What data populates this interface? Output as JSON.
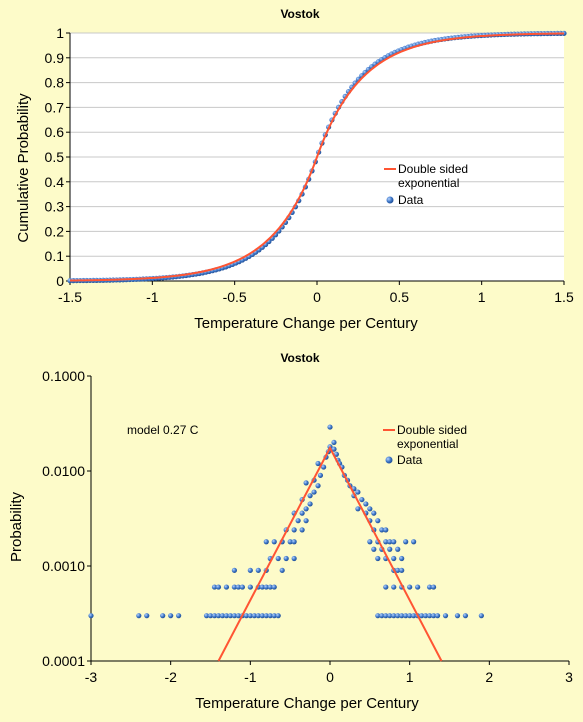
{
  "colors": {
    "background": "#fdfbc9",
    "plot_area": "#ffffff",
    "gridline": "#c8c8c8",
    "fit_line": "#ff5533",
    "data_marker": "#2a5fb0",
    "data_marker_highlight": "#9fc4f5"
  },
  "chart_data": [
    {
      "type": "scatter",
      "title": "Vostok",
      "xlabel": "Temperature Change per Century",
      "ylabel": "Cumulative Probability",
      "xlim": [
        -1.5,
        1.5
      ],
      "ylim": [
        0,
        1
      ],
      "x_ticks": [
        "-1.5",
        "-1",
        "-0.5",
        "0",
        "0.5",
        "1",
        "1.5"
      ],
      "y_ticks": [
        "0",
        "0.1",
        "0.2",
        "0.3",
        "0.4",
        "0.5",
        "0.6",
        "0.7",
        "0.8",
        "0.9",
        "1"
      ],
      "grid": "horizontal",
      "legend_position": "right-middle",
      "legend": [
        "Double sided exponential",
        "Data"
      ],
      "series": [
        {
          "name": "Double sided exponential",
          "kind": "line",
          "model": "laplace_cdf",
          "scale": 0.27
        },
        {
          "name": "Data",
          "kind": "markers",
          "x_range": [
            -1.5,
            1.5
          ],
          "n_points": 150,
          "model": "laplace_cdf",
          "scale": 0.255
        }
      ]
    },
    {
      "type": "scatter",
      "title": "Vostok",
      "xlabel": "Temperature Change per Century",
      "ylabel": "Probability",
      "xlim": [
        -3,
        3
      ],
      "ylim": [
        0.0001,
        0.1
      ],
      "y_scale": "log",
      "x_ticks": [
        "-3",
        "-2",
        "-1",
        "0",
        "1",
        "2",
        "3"
      ],
      "y_ticks": [
        "0.0001",
        "0.0010",
        "0.0100",
        "0.1000"
      ],
      "grid": "none",
      "legend_position": "top-right",
      "legend": [
        "Double sided exponential",
        "Data"
      ],
      "annotation": "model 0.27 C",
      "series": [
        {
          "name": "Double sided exponential",
          "kind": "line",
          "x": [
            -1.4,
            0,
            1.4
          ],
          "y": [
            0.0001,
            0.0175,
            0.0001
          ]
        },
        {
          "name": "Data",
          "kind": "markers",
          "points": [
            [
              -3.0,
              0.0003
            ],
            [
              -2.4,
              0.0003
            ],
            [
              -2.3,
              0.0003
            ],
            [
              -2.1,
              0.0003
            ],
            [
              -2.0,
              0.0003
            ],
            [
              -1.9,
              0.0003
            ],
            [
              -1.55,
              0.0003
            ],
            [
              -1.5,
              0.0003
            ],
            [
              -1.45,
              0.0003
            ],
            [
              -1.4,
              0.0003
            ],
            [
              -1.35,
              0.0003
            ],
            [
              -1.3,
              0.0003
            ],
            [
              -1.25,
              0.0003
            ],
            [
              -1.2,
              0.0003
            ],
            [
              -1.15,
              0.0003
            ],
            [
              -1.1,
              0.0003
            ],
            [
              -1.05,
              0.0003
            ],
            [
              -1.0,
              0.0003
            ],
            [
              -0.95,
              0.0003
            ],
            [
              -0.9,
              0.0003
            ],
            [
              -0.85,
              0.0003
            ],
            [
              -0.8,
              0.0003
            ],
            [
              -0.75,
              0.0003
            ],
            [
              -0.7,
              0.0003
            ],
            [
              -0.65,
              0.0003
            ],
            [
              -1.45,
              0.0006
            ],
            [
              -1.4,
              0.0006
            ],
            [
              -1.3,
              0.0006
            ],
            [
              -1.2,
              0.0006
            ],
            [
              -1.15,
              0.0006
            ],
            [
              -1.1,
              0.0006
            ],
            [
              -1.0,
              0.0006
            ],
            [
              -0.9,
              0.0006
            ],
            [
              -0.85,
              0.0006
            ],
            [
              -0.8,
              0.0006
            ],
            [
              -0.75,
              0.0006
            ],
            [
              -0.7,
              0.0006
            ],
            [
              -1.2,
              0.0009
            ],
            [
              -1.0,
              0.0009
            ],
            [
              -0.9,
              0.0009
            ],
            [
              -0.8,
              0.0009
            ],
            [
              -0.6,
              0.0009
            ],
            [
              -0.75,
              0.0012
            ],
            [
              -0.65,
              0.0012
            ],
            [
              -0.55,
              0.0012
            ],
            [
              -0.45,
              0.0012
            ],
            [
              -0.8,
              0.0018
            ],
            [
              -0.7,
              0.0018
            ],
            [
              -0.6,
              0.0018
            ],
            [
              -0.5,
              0.0018
            ],
            [
              -0.45,
              0.0018
            ],
            [
              -0.55,
              0.0024
            ],
            [
              -0.45,
              0.0024
            ],
            [
              -0.35,
              0.0024
            ],
            [
              -0.4,
              0.003
            ],
            [
              -0.3,
              0.003
            ],
            [
              -0.45,
              0.0036
            ],
            [
              -0.35,
              0.0036
            ],
            [
              -0.3,
              0.004
            ],
            [
              -0.25,
              0.0045
            ],
            [
              -0.35,
              0.005
            ],
            [
              -0.25,
              0.0055
            ],
            [
              -0.2,
              0.006
            ],
            [
              -0.15,
              0.007
            ],
            [
              -0.3,
              0.0075
            ],
            [
              -0.2,
              0.008
            ],
            [
              -0.12,
              0.009
            ],
            [
              -0.08,
              0.011
            ],
            [
              -0.15,
              0.012
            ],
            [
              -0.05,
              0.014
            ],
            [
              -0.02,
              0.016
            ],
            [
              0.0,
              0.018
            ],
            [
              0.0,
              0.029
            ],
            [
              0.05,
              0.02
            ],
            [
              0.05,
              0.017
            ],
            [
              0.08,
              0.015
            ],
            [
              0.1,
              0.013
            ],
            [
              0.12,
              0.012
            ],
            [
              0.15,
              0.011
            ],
            [
              0.18,
              0.009
            ],
            [
              0.22,
              0.008
            ],
            [
              0.25,
              0.007
            ],
            [
              0.3,
              0.0065
            ],
            [
              0.35,
              0.006
            ],
            [
              0.3,
              0.0055
            ],
            [
              0.4,
              0.005
            ],
            [
              0.45,
              0.0045
            ],
            [
              0.35,
              0.004
            ],
            [
              0.5,
              0.004
            ],
            [
              0.45,
              0.0036
            ],
            [
              0.55,
              0.0036
            ],
            [
              0.5,
              0.003
            ],
            [
              0.6,
              0.003
            ],
            [
              0.55,
              0.0024
            ],
            [
              0.65,
              0.0024
            ],
            [
              0.7,
              0.0024
            ],
            [
              0.5,
              0.0018
            ],
            [
              0.6,
              0.0018
            ],
            [
              0.7,
              0.0018
            ],
            [
              0.75,
              0.0018
            ],
            [
              0.8,
              0.0018
            ],
            [
              0.55,
              0.0015
            ],
            [
              0.65,
              0.0015
            ],
            [
              0.75,
              0.0015
            ],
            [
              0.85,
              0.0015
            ],
            [
              0.95,
              0.0018
            ],
            [
              1.05,
              0.0018
            ],
            [
              0.6,
              0.0012
            ],
            [
              0.7,
              0.0012
            ],
            [
              0.8,
              0.0012
            ],
            [
              0.9,
              0.0012
            ],
            [
              0.8,
              0.0009
            ],
            [
              0.85,
              0.0009
            ],
            [
              0.9,
              0.0009
            ],
            [
              0.7,
              0.0006
            ],
            [
              0.8,
              0.0006
            ],
            [
              0.9,
              0.0006
            ],
            [
              1.0,
              0.0006
            ],
            [
              1.1,
              0.0006
            ],
            [
              1.25,
              0.0006
            ],
            [
              1.3,
              0.0006
            ],
            [
              0.6,
              0.0003
            ],
            [
              0.65,
              0.0003
            ],
            [
              0.7,
              0.0003
            ],
            [
              0.75,
              0.0003
            ],
            [
              0.8,
              0.0003
            ],
            [
              0.85,
              0.0003
            ],
            [
              0.9,
              0.0003
            ],
            [
              0.95,
              0.0003
            ],
            [
              1.0,
              0.0003
            ],
            [
              1.05,
              0.0003
            ],
            [
              1.1,
              0.0003
            ],
            [
              1.15,
              0.0003
            ],
            [
              1.2,
              0.0003
            ],
            [
              1.25,
              0.0003
            ],
            [
              1.3,
              0.0003
            ],
            [
              1.35,
              0.0003
            ],
            [
              1.45,
              0.0003
            ],
            [
              1.6,
              0.0003
            ],
            [
              1.7,
              0.0003
            ],
            [
              1.9,
              0.0003
            ]
          ]
        }
      ]
    }
  ]
}
